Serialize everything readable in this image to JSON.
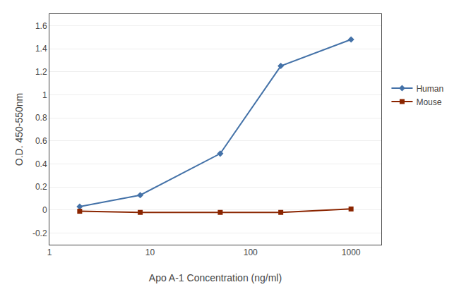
{
  "chart_data": {
    "type": "line",
    "x": [
      2,
      8,
      50,
      200,
      1000
    ],
    "series": [
      {
        "name": "Human",
        "color": "#4472a8",
        "marker": "diamond",
        "values": [
          0.03,
          0.13,
          0.49,
          1.25,
          1.48
        ]
      },
      {
        "name": "Mouse",
        "color": "#8b2500",
        "marker": "square",
        "values": [
          -0.01,
          -0.02,
          -0.02,
          -0.02,
          0.01
        ]
      }
    ],
    "x_label": "Apo A-1 Concentration (ng/ml)",
    "y_label": "O.D. 450-550nm",
    "log": "x",
    "xlim": [
      1,
      2000
    ],
    "xticks": [
      1,
      10,
      100,
      1000
    ],
    "ylim": [
      -0.3,
      1.7
    ],
    "yticks": [
      -0.2,
      0,
      0.2,
      0.4,
      0.6,
      0.8,
      1,
      1.2,
      1.4,
      1.6
    ],
    "grid": "y",
    "legend": "right"
  }
}
